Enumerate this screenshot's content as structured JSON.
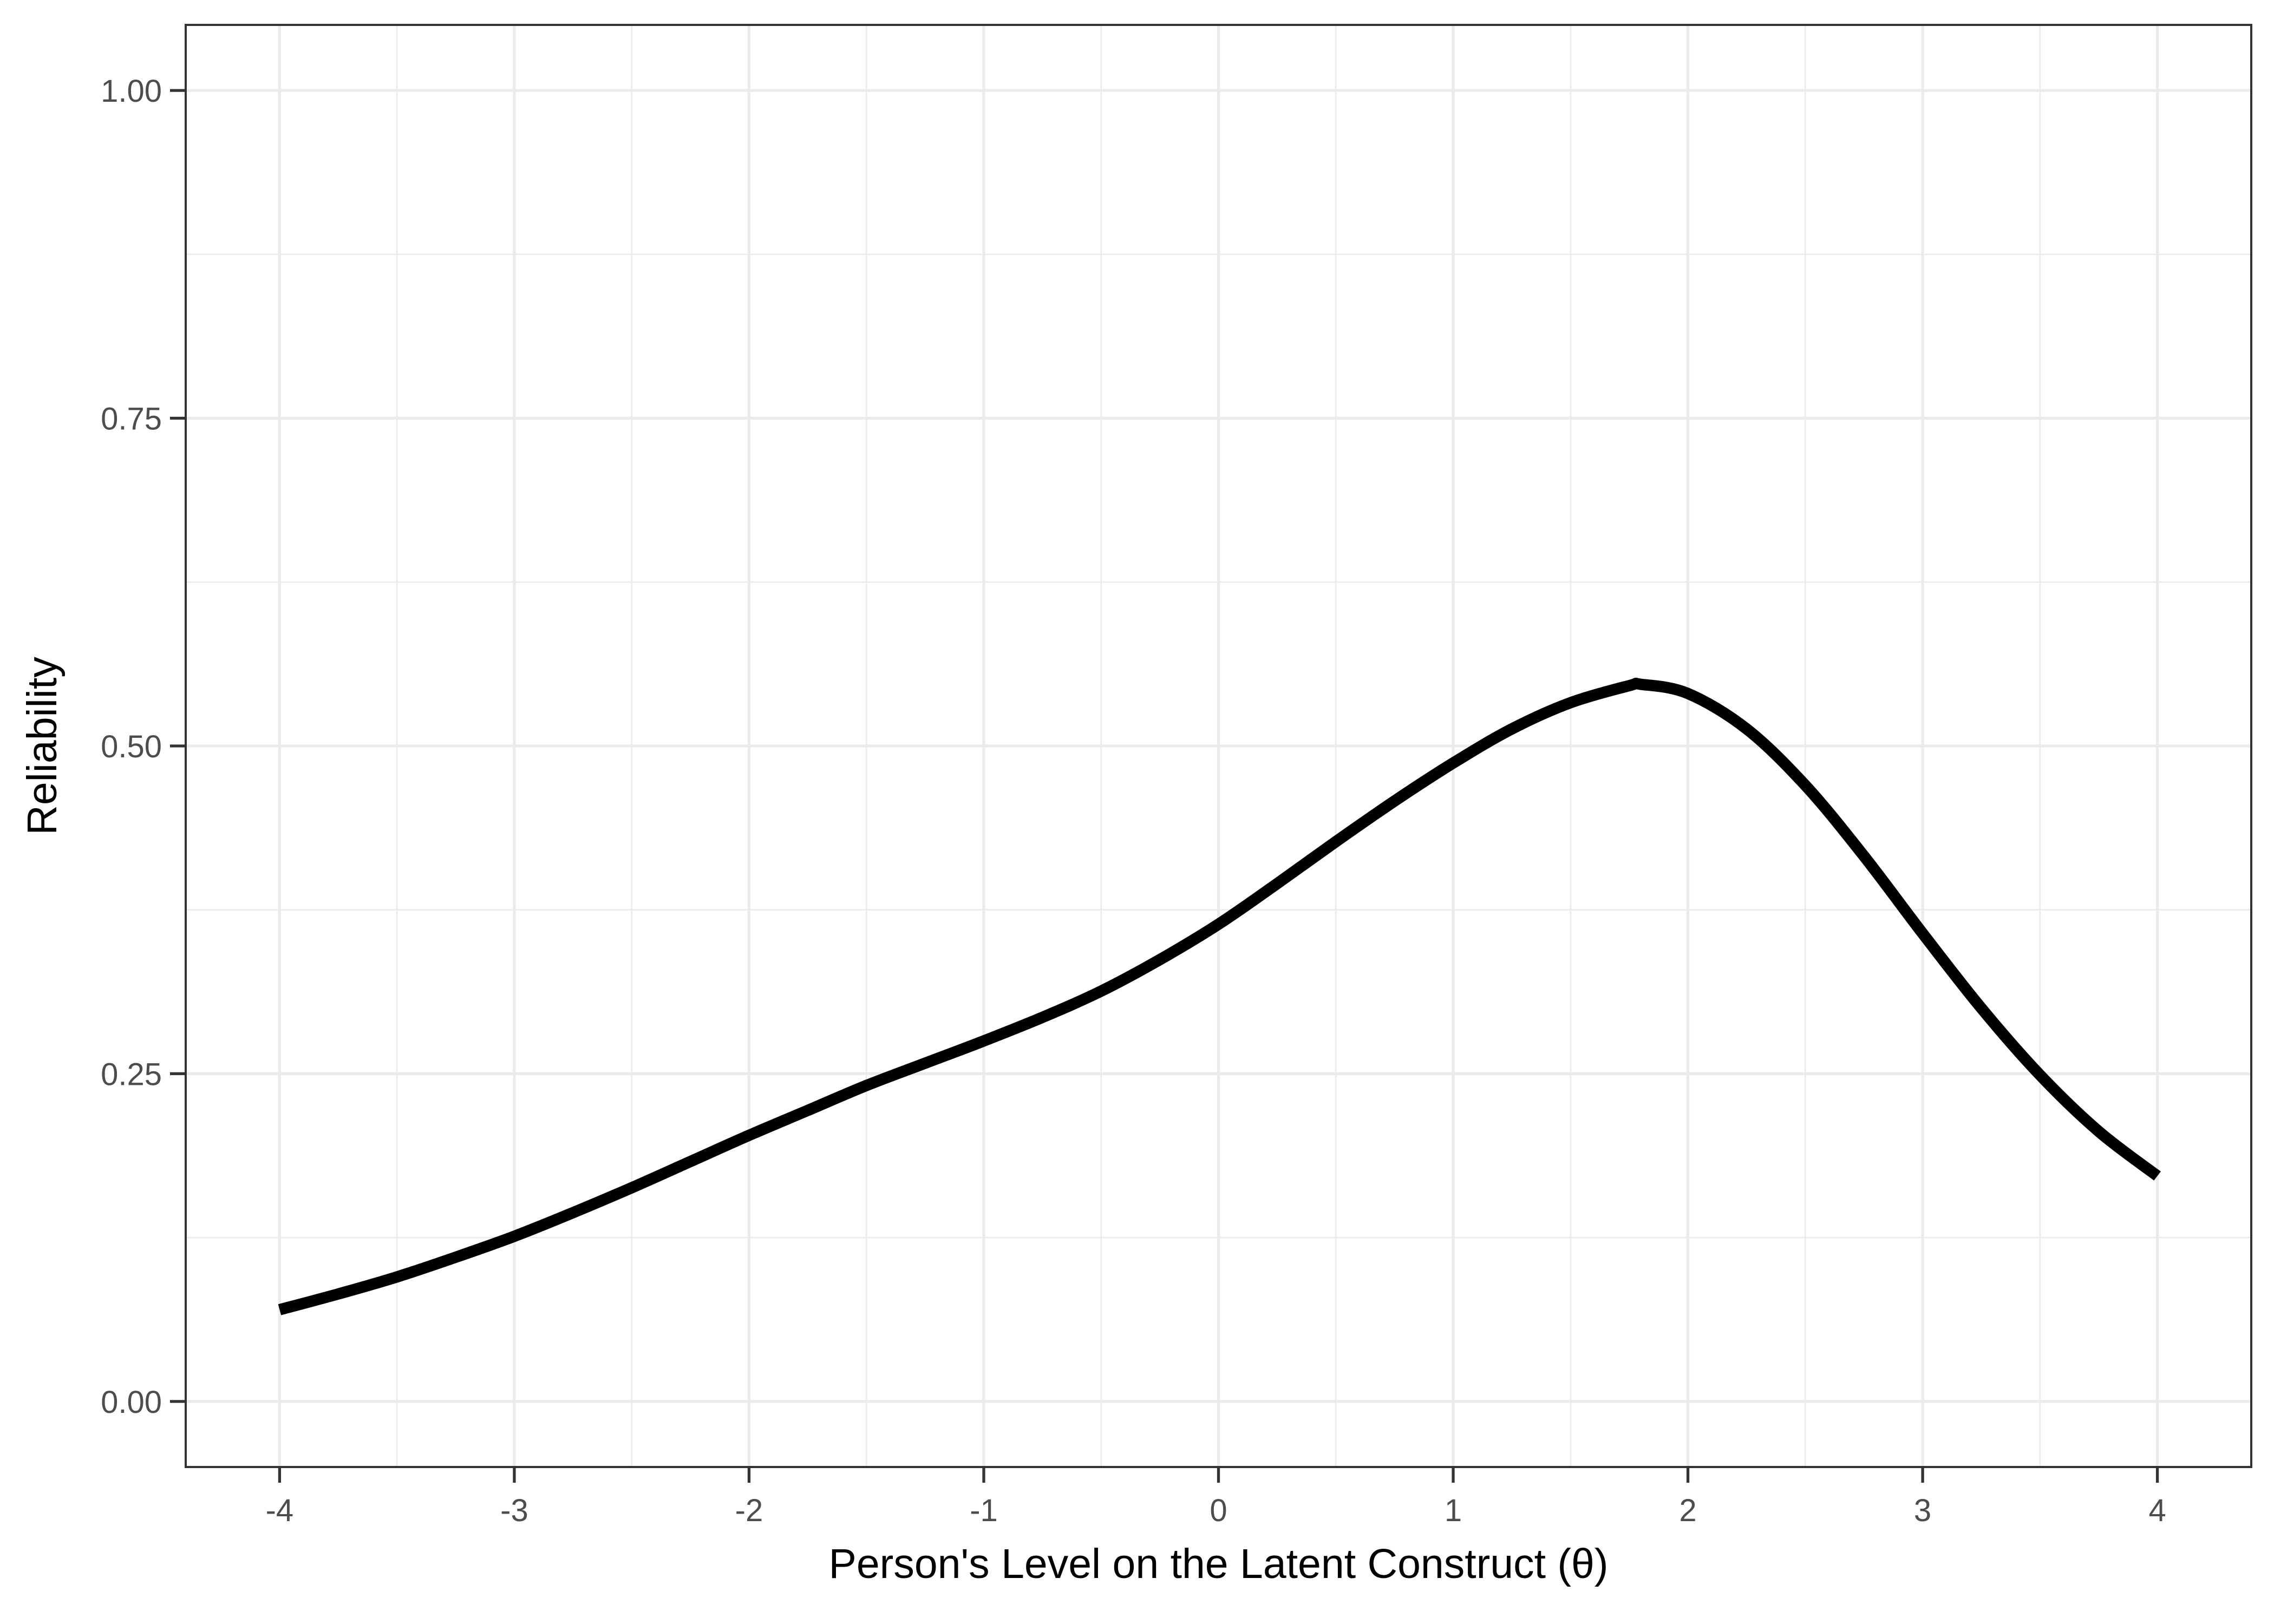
{
  "chart_data": {
    "type": "line",
    "title": "",
    "xlabel": "Person's Level on the Latent Construct (θ)",
    "ylabel": "Reliability",
    "xlim": [
      -4.4,
      4.4
    ],
    "ylim": [
      -0.05,
      1.05
    ],
    "x_ticks": [
      -4,
      -3,
      -2,
      -1,
      0,
      1,
      2,
      3,
      4
    ],
    "x_tick_labels": [
      "-4",
      "-3",
      "-2",
      "-1",
      "0",
      "1",
      "2",
      "3",
      "4"
    ],
    "y_ticks": [
      0,
      0.25,
      0.5,
      0.75,
      1
    ],
    "y_tick_labels": [
      "0.00",
      "0.25",
      "0.50",
      "0.75",
      "1.00"
    ],
    "x_minor_ticks": [
      -3.5,
      -2.5,
      -1.5,
      -0.5,
      0.5,
      1.5,
      2.5,
      3.5
    ],
    "y_minor_ticks": [
      0.125,
      0.375,
      0.625,
      0.875
    ],
    "grid": true,
    "legend": "none",
    "colors": {
      "line": "#000000",
      "grid": "#ebebeb",
      "border": "#333333",
      "tick_text": "#4d4d4d",
      "background": "#ffffff"
    },
    "series": [
      {
        "x": [
          -4.0,
          -3.75,
          -3.5,
          -3.25,
          -3.0,
          -2.75,
          -2.5,
          -2.25,
          -2.0,
          -1.75,
          -1.5,
          -1.25,
          -1.0,
          -0.75,
          -0.5,
          -0.25,
          0.0,
          0.25,
          0.5,
          0.75,
          1.0,
          1.25,
          1.5,
          1.75,
          1.8,
          2.0,
          2.25,
          2.5,
          2.75,
          3.0,
          3.25,
          3.5,
          3.75,
          4.0
        ],
        "y": [
          0.07,
          0.082,
          0.095,
          0.11,
          0.126,
          0.144,
          0.163,
          0.183,
          0.203,
          0.222,
          0.241,
          0.258,
          0.275,
          0.293,
          0.313,
          0.337,
          0.364,
          0.395,
          0.427,
          0.458,
          0.487,
          0.513,
          0.533,
          0.546,
          0.547,
          0.54,
          0.513,
          0.47,
          0.416,
          0.357,
          0.3,
          0.249,
          0.206,
          0.172
        ]
      }
    ]
  }
}
